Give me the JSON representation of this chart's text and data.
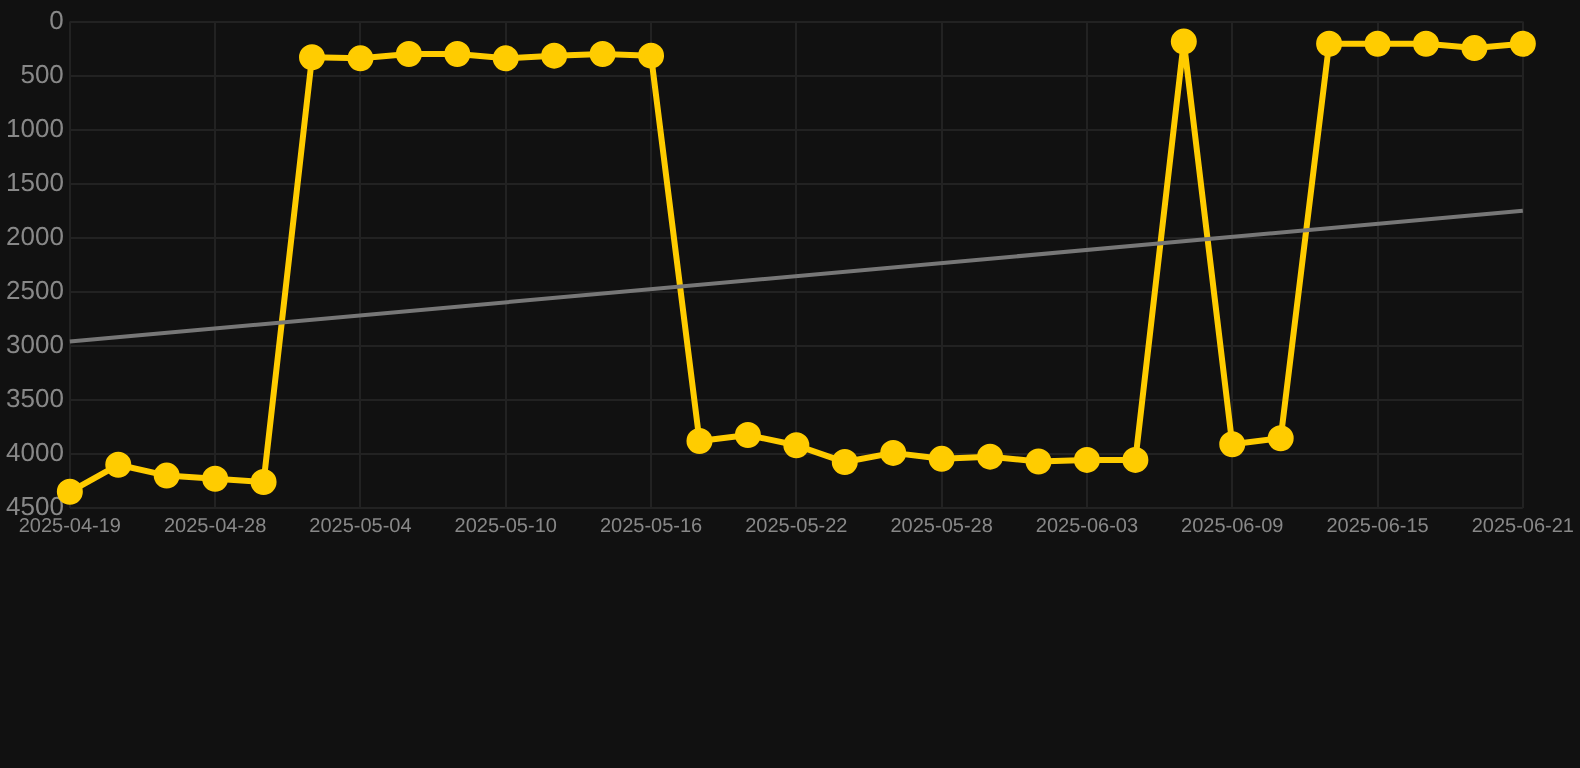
{
  "chart_data": {
    "type": "line",
    "categories": [
      "2025-04-19",
      null,
      null,
      "2025-04-28",
      null,
      null,
      "2025-05-04",
      null,
      null,
      "2025-05-10",
      null,
      null,
      "2025-05-16",
      null,
      null,
      "2025-05-22",
      null,
      null,
      "2025-05-28",
      null,
      null,
      "2025-06-03",
      null,
      null,
      "2025-06-09",
      null,
      null,
      "2025-06-15",
      null,
      null,
      "2025-06-21"
    ],
    "series": [
      {
        "color": "#ffcc00",
        "marker": "circle",
        "values": [
          4350,
          4100,
          4200,
          4230,
          4260,
          330,
          340,
          300,
          300,
          340,
          315,
          300,
          315,
          3880,
          3825,
          3920,
          4075,
          3990,
          4045,
          4025,
          4070,
          4055,
          4055,
          185,
          3910,
          3855,
          205,
          205,
          205,
          245,
          205
        ]
      },
      {
        "type": "line",
        "color": "#777777",
        "marker": "none",
        "values": [
          2960,
          null,
          null,
          null,
          null,
          null,
          null,
          null,
          null,
          null,
          null,
          null,
          null,
          null,
          null,
          null,
          null,
          null,
          null,
          null,
          null,
          null,
          null,
          null,
          null,
          null,
          null,
          null,
          null,
          null,
          1750
        ]
      }
    ],
    "ylim": [
      4500,
      0
    ],
    "yticks": [
      0,
      500,
      1000,
      1500,
      2000,
      2500,
      3000,
      3500,
      4000,
      4500
    ],
    "grid": true,
    "legend": false
  }
}
